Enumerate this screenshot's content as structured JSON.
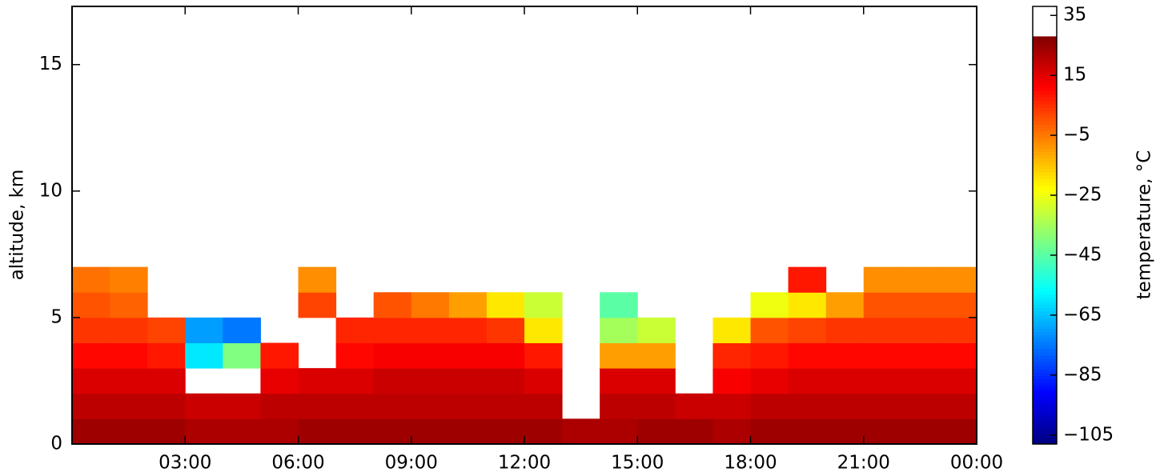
{
  "chart_data": {
    "type": "heatmap",
    "x_label": null,
    "y_label": "altitude, km",
    "xbins": [
      0,
      1,
      2,
      3,
      4,
      5,
      6,
      7,
      8,
      9,
      10,
      11,
      12,
      13,
      14,
      15,
      16,
      17,
      18,
      19,
      20,
      21,
      22,
      23,
      24
    ],
    "ybins": [
      0,
      1,
      2,
      3,
      4,
      5,
      6,
      7
    ],
    "values": [
      [
        24,
        24,
        24,
        22,
        22,
        22,
        24,
        24,
        24,
        24,
        24,
        24,
        24,
        22,
        22,
        24,
        24,
        22,
        24,
        24,
        24,
        24,
        24,
        24
      ],
      [
        20,
        20,
        20,
        18,
        18,
        20,
        20,
        20,
        20,
        20,
        20,
        20,
        20,
        null,
        20,
        20,
        18,
        18,
        20,
        20,
        20,
        20,
        20,
        20
      ],
      [
        16,
        16,
        16,
        null,
        null,
        14,
        16,
        16,
        18,
        18,
        18,
        18,
        16,
        null,
        16,
        16,
        null,
        12,
        14,
        16,
        16,
        16,
        16,
        16
      ],
      [
        10,
        10,
        8,
        -60,
        -40,
        8,
        null,
        10,
        12,
        12,
        12,
        12,
        8,
        null,
        -10,
        -10,
        null,
        6,
        8,
        10,
        10,
        10,
        10,
        10
      ],
      [
        4,
        4,
        2,
        -70,
        -75,
        null,
        null,
        6,
        6,
        6,
        6,
        4,
        -20,
        null,
        -35,
        -30,
        null,
        -20,
        0,
        2,
        4,
        4,
        4,
        4
      ],
      [
        0,
        -2,
        null,
        null,
        null,
        null,
        2,
        null,
        0,
        -5,
        -10,
        -20,
        -30,
        null,
        -45,
        null,
        null,
        null,
        -25,
        -20,
        -10,
        0,
        0,
        0
      ],
      [
        -4,
        -6,
        null,
        null,
        null,
        null,
        -8,
        null,
        null,
        null,
        null,
        null,
        null,
        null,
        null,
        null,
        null,
        null,
        null,
        8,
        null,
        -8,
        -8,
        -8
      ]
    ],
    "xlim": [
      0,
      24
    ],
    "ylim": [
      0,
      17.3
    ],
    "xticks": [
      {
        "value": 3,
        "label": "03:00"
      },
      {
        "value": 6,
        "label": "06:00"
      },
      {
        "value": 9,
        "label": "09:00"
      },
      {
        "value": 12,
        "label": "12:00"
      },
      {
        "value": 15,
        "label": "15:00"
      },
      {
        "value": 18,
        "label": "18:00"
      },
      {
        "value": 21,
        "label": "21:00"
      },
      {
        "value": 24,
        "label": "00:00"
      }
    ],
    "yticks": [
      0,
      5,
      10,
      15
    ],
    "colorbar": {
      "label": "temperature, °C",
      "colormap": "jet",
      "clim": [
        -108,
        28
      ],
      "range": [
        -108,
        38
      ],
      "ticks": [
        {
          "value": -105,
          "label": "−105"
        },
        {
          "value": -85,
          "label": "−85"
        },
        {
          "value": -65,
          "label": "−65"
        },
        {
          "value": -45,
          "label": "−45"
        },
        {
          "value": -25,
          "label": "−25"
        },
        {
          "value": -5,
          "label": "−5"
        },
        15,
        35
      ]
    }
  }
}
